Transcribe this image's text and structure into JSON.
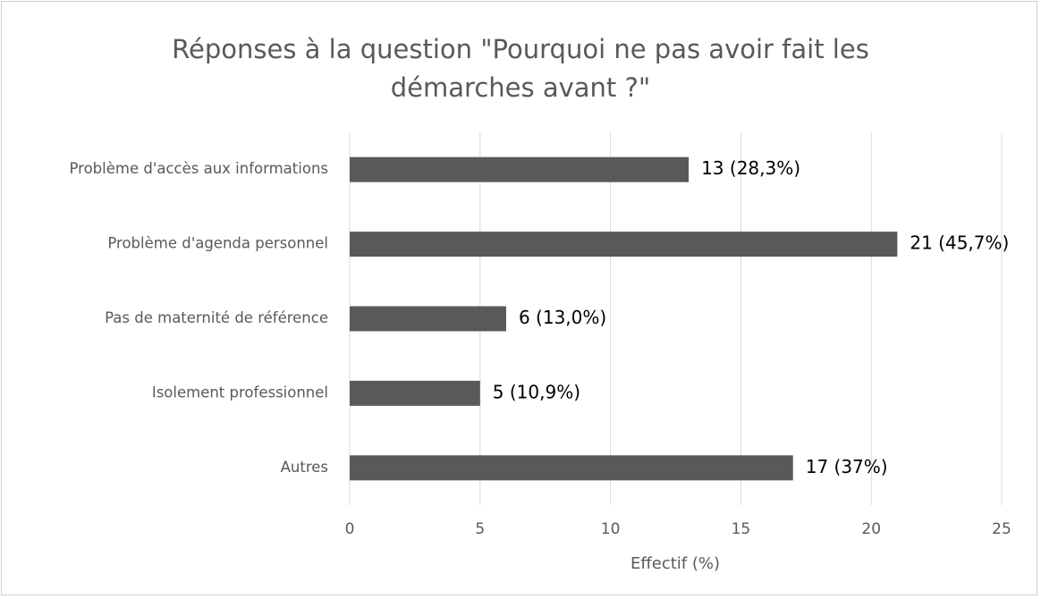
{
  "chart_data": {
    "type": "bar",
    "orientation": "horizontal",
    "title": "Réponses à la question \"Pourquoi ne pas avoir fait les démarches avant ?\"",
    "x_label": "Effectif (%)",
    "categories": [
      "Problème d'accès aux informations",
      "Problème d'agenda personnel",
      "Pas de maternité de référence",
      "Isolement professionnel",
      "Autres"
    ],
    "values": [
      13,
      21,
      6,
      5,
      17
    ],
    "value_labels": [
      "13 (28,3%)",
      "21 (45,7%)",
      "6 (13,0%)",
      "5 (10,9%)",
      "17 (37%)"
    ],
    "color": "#595959",
    "xlim": [
      0,
      25
    ],
    "xticks": [
      0,
      5,
      10,
      15,
      20,
      25
    ],
    "grid": true
  }
}
